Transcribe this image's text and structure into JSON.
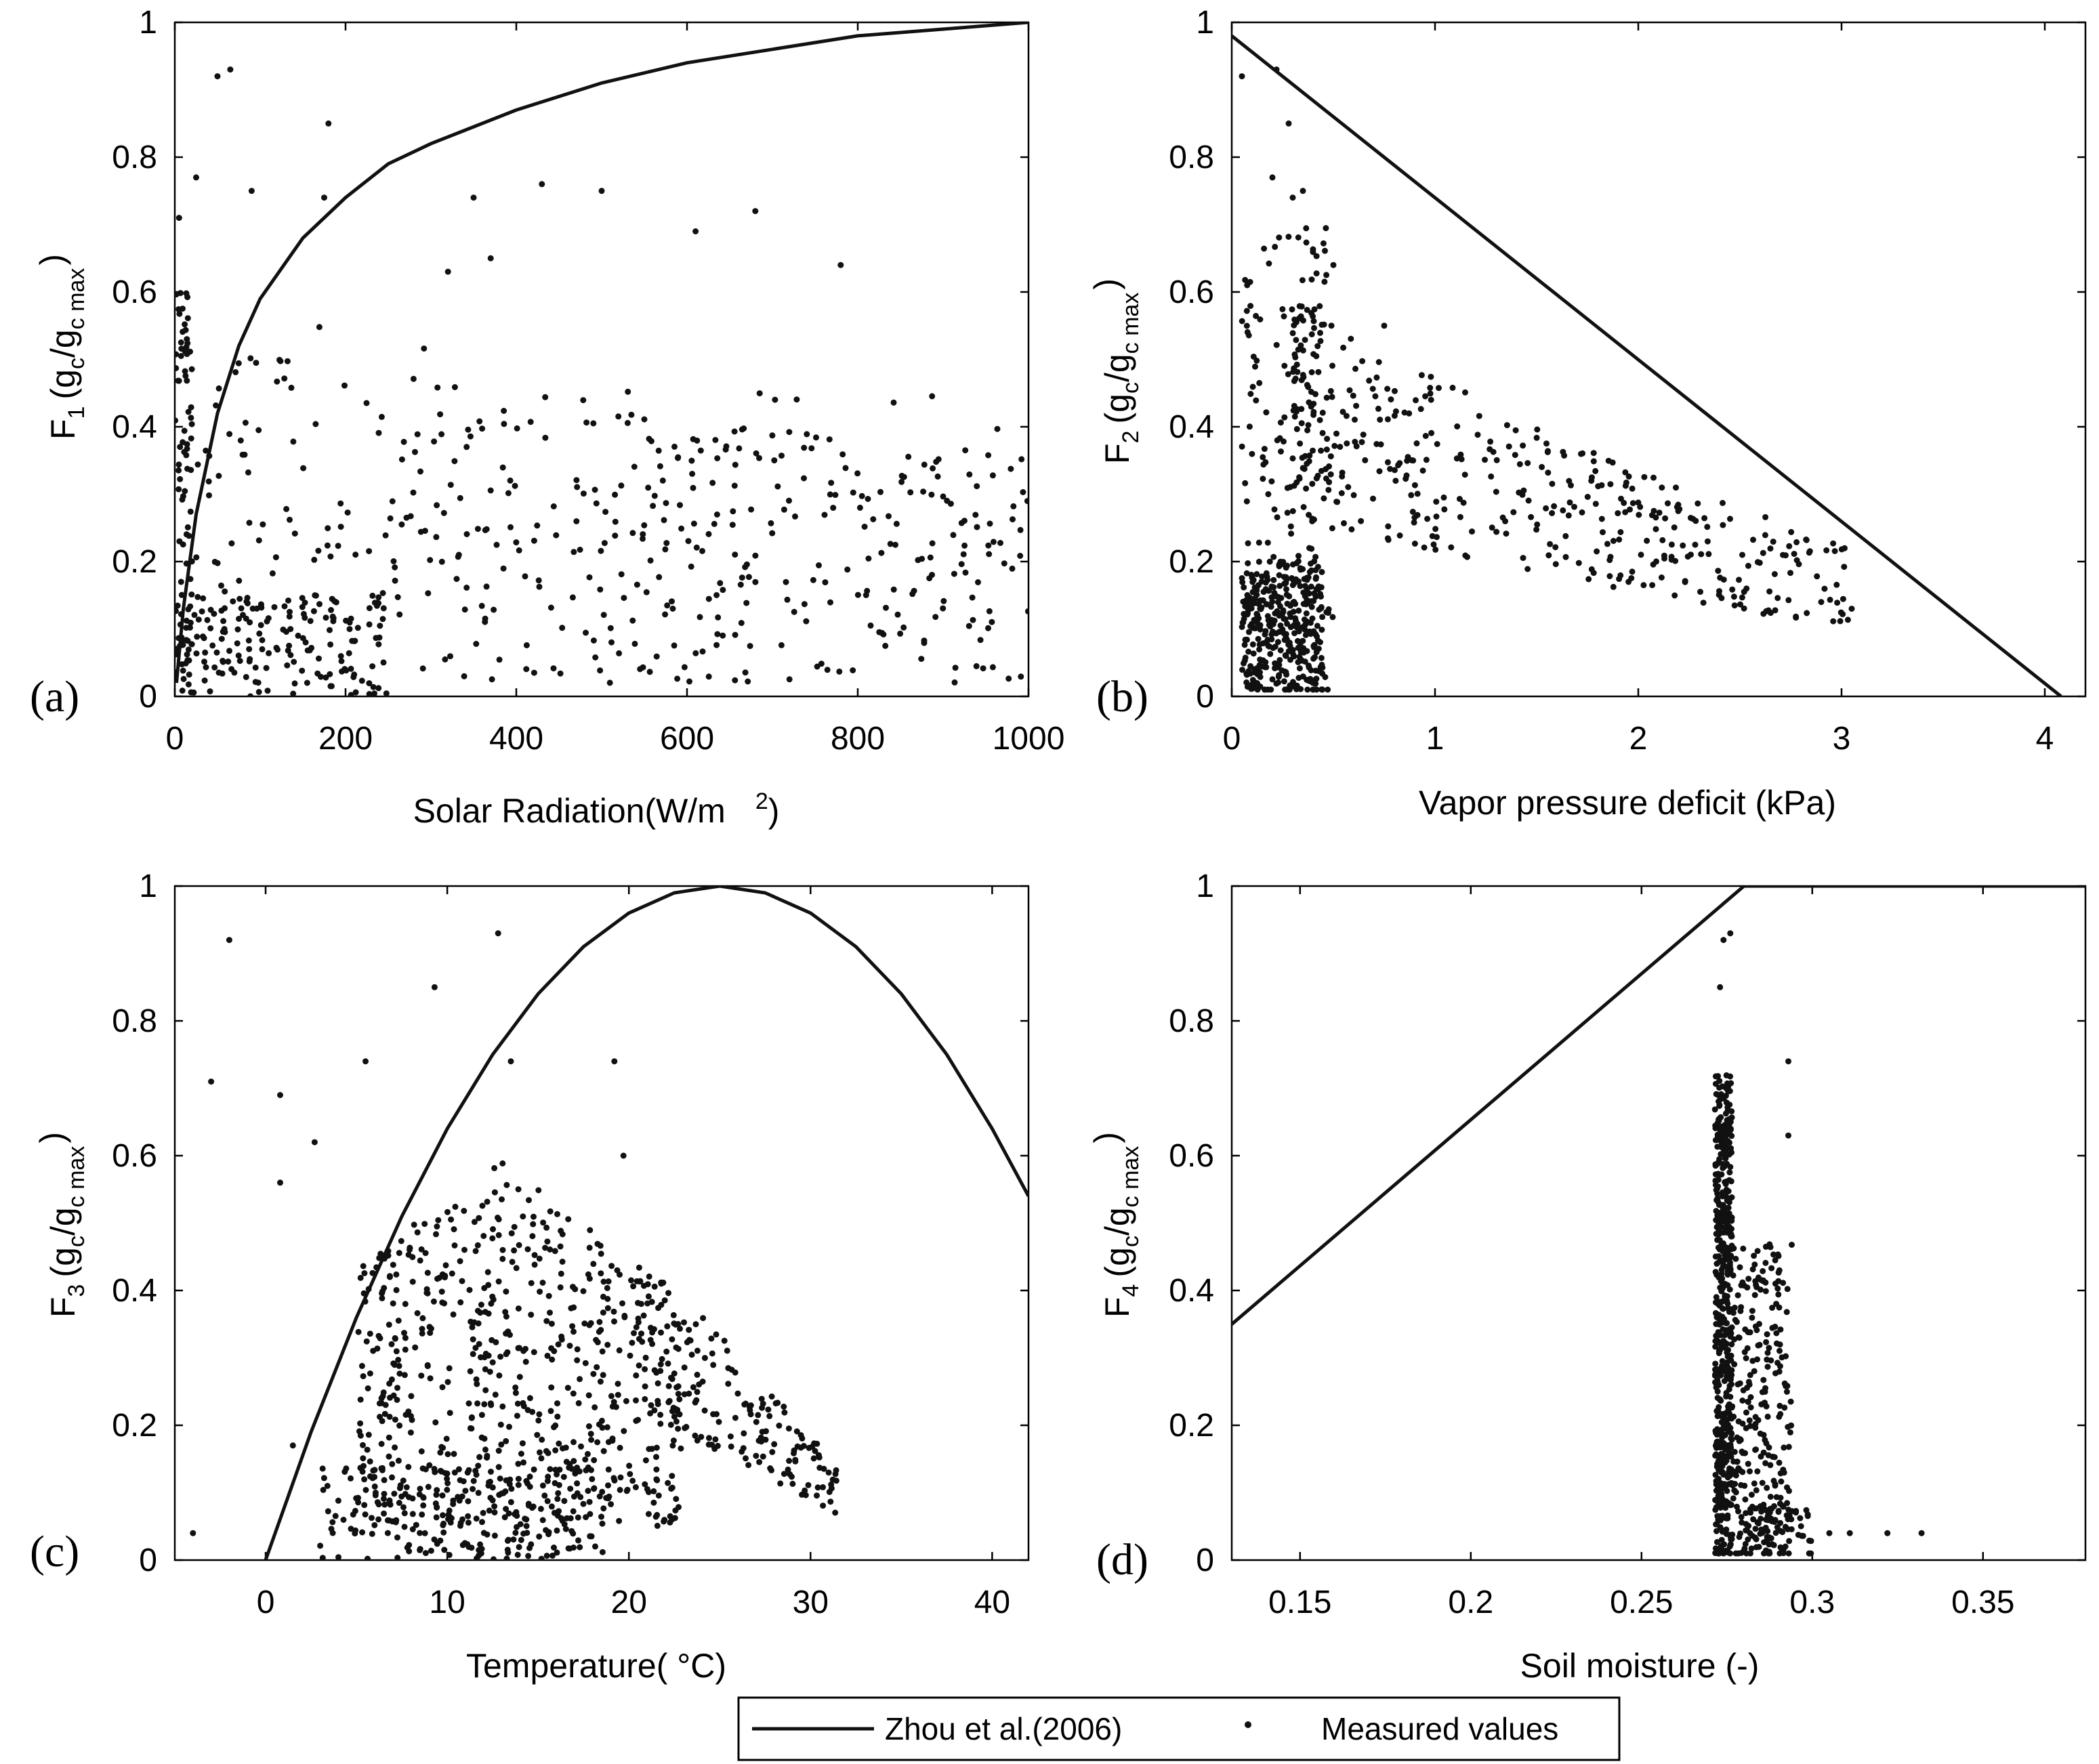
{
  "figure": {
    "panels": [
      {
        "id": "a",
        "letter": "(a)",
        "ylabel": {
          "F": "F",
          "sub": "1"
        },
        "xlabel": "Solar Radiation(W/m",
        "xlabel_sup": "2",
        "xlabel_tail": ")"
      },
      {
        "id": "b",
        "letter": "(b)",
        "ylabel": {
          "F": "F",
          "sub": "2"
        },
        "xlabel": "Vapor pressure deficit (kPa)"
      },
      {
        "id": "c",
        "letter": "(c)",
        "ylabel": {
          "F": "F",
          "sub": "3"
        },
        "xlabel": "Temperature(   °C)"
      },
      {
        "id": "d",
        "letter": "(d)",
        "ylabel": {
          "F": "F",
          "sub": "4"
        },
        "xlabel": "Soil moisture (-)"
      }
    ],
    "ylabel_common": {
      "open": "(g",
      "c": "c",
      "slash": "/g",
      "cmax": "c max",
      "close": ")"
    },
    "legend": {
      "line_label": "Zhou et al.(2006)",
      "marker_label": "Measured values"
    },
    "colors": {
      "line": "#111111",
      "marker": "#111111",
      "axis": "#000000",
      "background": "#ffffff"
    }
  },
  "chart_data": [
    {
      "id": "a",
      "type": "scatter",
      "title": "",
      "xlabel": "Solar Radiation(W/m2)",
      "ylabel": "F1 (gc/gc max)",
      "xlim": [
        0,
        1000
      ],
      "ylim": [
        0,
        1
      ],
      "xticks": [
        0,
        200,
        400,
        600,
        800,
        1000
      ],
      "xtick_labels": [
        "0",
        "200",
        "400",
        "600",
        "800",
        "1000"
      ],
      "yticks": [
        0,
        0.2,
        0.4,
        0.6,
        0.8,
        1
      ],
      "ytick_labels": [
        "0",
        "0.2",
        "0.4",
        "0.6",
        "0.8",
        "1"
      ],
      "series": [
        {
          "name": "Zhou et al.(2006)",
          "kind": "line",
          "x": [
            2,
            10,
            25,
            50,
            75,
            100,
            150,
            200,
            250,
            300,
            400,
            500,
            600,
            700,
            800,
            900,
            1000
          ],
          "y": [
            0.02,
            0.13,
            0.27,
            0.42,
            0.52,
            0.59,
            0.68,
            0.74,
            0.79,
            0.82,
            0.87,
            0.91,
            0.94,
            0.96,
            0.98,
            0.99,
            1.0
          ]
        },
        {
          "name": "Measured values",
          "kind": "scatter",
          "generated": {
            "seed": 11,
            "n": 700,
            "shape": "radiation"
          },
          "notable_points": [
            [
              50,
              0.92
            ],
            [
              65,
              0.93
            ],
            [
              180,
              0.85
            ],
            [
              25,
              0.77
            ],
            [
              90,
              0.75
            ],
            [
              175,
              0.74
            ],
            [
              430,
              0.76
            ],
            [
              350,
              0.74
            ],
            [
              500,
              0.75
            ],
            [
              610,
              0.69
            ],
            [
              680,
              0.72
            ],
            [
              780,
              0.64
            ],
            [
              5,
              0.71
            ],
            [
              320,
              0.63
            ],
            [
              370,
              0.65
            ]
          ]
        }
      ]
    },
    {
      "id": "b",
      "type": "scatter",
      "title": "",
      "xlabel": "Vapor pressure deficit (kPa)",
      "ylabel": "F2 (gc/gc max)",
      "xlim": [
        0,
        4.2
      ],
      "ylim": [
        0,
        1
      ],
      "xticks": [
        0,
        1,
        2,
        3,
        4
      ],
      "xtick_labels": [
        "0",
        "1",
        "2",
        "3",
        "4"
      ],
      "yticks": [
        0,
        0.2,
        0.4,
        0.6,
        0.8,
        1
      ],
      "ytick_labels": [
        "0",
        "0.2",
        "0.4",
        "0.6",
        "0.8",
        "1"
      ],
      "series": [
        {
          "name": "Zhou et al.(2006)",
          "kind": "line",
          "x": [
            0,
            4.08
          ],
          "y": [
            0.98,
            0.0
          ]
        },
        {
          "name": "Measured values",
          "kind": "scatter",
          "generated": {
            "seed": 23,
            "n": 900,
            "shape": "vpd"
          },
          "notable_points": [
            [
              0.05,
              0.92
            ],
            [
              0.22,
              0.93
            ],
            [
              0.28,
              0.85
            ],
            [
              0.2,
              0.77
            ],
            [
              0.35,
              0.75
            ],
            [
              0.3,
              0.74
            ],
            [
              3.05,
              0.13
            ],
            [
              2.9,
              0.14
            ],
            [
              0.5,
              0.64
            ],
            [
              0.75,
              0.55
            ]
          ]
        }
      ]
    },
    {
      "id": "c",
      "type": "scatter",
      "title": "",
      "xlabel": "Temperature(°C)",
      "ylabel": "F3 (gc/gc max)",
      "xlim": [
        -5,
        42
      ],
      "ylim": [
        0,
        1
      ],
      "xticks": [
        0,
        10,
        20,
        30,
        40
      ],
      "xtick_labels": [
        "0",
        "10",
        "20",
        "30",
        "40"
      ],
      "yticks": [
        0,
        0.2,
        0.4,
        0.6,
        0.8,
        1
      ],
      "ytick_labels": [
        "0",
        "0.2",
        "0.4",
        "0.6",
        "0.8",
        "1"
      ],
      "series": [
        {
          "name": "Zhou et al.(2006)",
          "kind": "line",
          "x": [
            0,
            2.5,
            5,
            7.5,
            10,
            12.5,
            15,
            17.5,
            20,
            22.5,
            25,
            27.5,
            30,
            32.5,
            35,
            37.5,
            40,
            42
          ],
          "y": [
            0.0,
            0.19,
            0.36,
            0.51,
            0.64,
            0.75,
            0.84,
            0.91,
            0.96,
            0.99,
            1.0,
            0.99,
            0.96,
            0.91,
            0.84,
            0.75,
            0.64,
            0.54
          ]
        },
        {
          "name": "Measured values",
          "kind": "scatter",
          "generated": {
            "seed": 37,
            "n": 1000,
            "shape": "temperature"
          },
          "notable_points": [
            [
              -2,
              0.92
            ],
            [
              12.8,
              0.93
            ],
            [
              9.3,
              0.85
            ],
            [
              -3,
              0.71
            ],
            [
              0.8,
              0.69
            ],
            [
              0.8,
              0.56
            ],
            [
              2.7,
              0.62
            ],
            [
              19.2,
              0.74
            ],
            [
              19.7,
              0.6
            ],
            [
              5.5,
              0.74
            ],
            [
              13.5,
              0.74
            ],
            [
              -4,
              0.04
            ],
            [
              31,
              0.13
            ],
            [
              1.5,
              0.17
            ]
          ]
        }
      ]
    },
    {
      "id": "d",
      "type": "scatter",
      "title": "",
      "xlabel": "Soil moisture (-)",
      "ylabel": "F4 (gc/gc max)",
      "xlim": [
        0.13,
        0.38
      ],
      "ylim": [
        0,
        1
      ],
      "xticks": [
        0.15,
        0.2,
        0.25,
        0.3,
        0.35
      ],
      "xtick_labels": [
        "0.15",
        "0.2",
        "0.25",
        "0.3",
        "0.35"
      ],
      "yticks": [
        0,
        0.2,
        0.4,
        0.6,
        0.8,
        1
      ],
      "ytick_labels": [
        "0",
        "0.2",
        "0.4",
        "0.6",
        "0.8",
        "1"
      ],
      "series": [
        {
          "name": "Zhou et al.(2006)",
          "kind": "line",
          "x": [
            0.13,
            0.28,
            0.38
          ],
          "y": [
            0.35,
            1.0,
            1.0
          ]
        },
        {
          "name": "Measured values",
          "kind": "scatter",
          "generated": {
            "seed": 53,
            "n": 850,
            "shape": "soil"
          },
          "notable_points": [
            [
              0.274,
              0.92
            ],
            [
              0.276,
              0.93
            ],
            [
              0.273,
              0.85
            ],
            [
              0.293,
              0.74
            ],
            [
              0.293,
              0.63
            ],
            [
              0.311,
              0.04
            ],
            [
              0.322,
              0.04
            ],
            [
              0.332,
              0.04
            ],
            [
              0.305,
              0.04
            ]
          ]
        }
      ]
    }
  ]
}
